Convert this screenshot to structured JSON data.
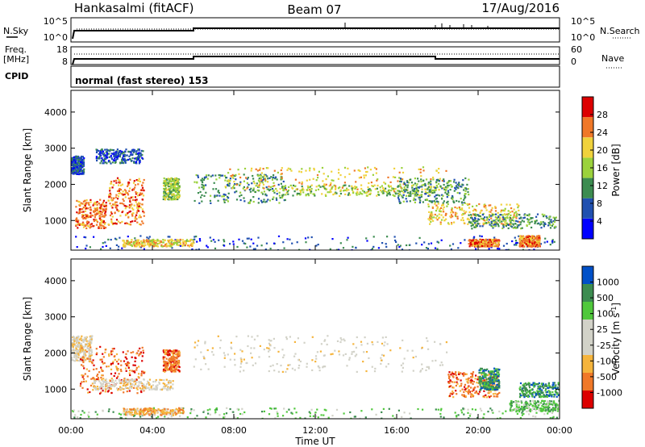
{
  "header": {
    "station": "Hankasalmi (fitACF)",
    "beam": "Beam 07",
    "date": "17/Aug/2016"
  },
  "nsky_panel": {
    "left_label": "N.Sky",
    "right_label": "N.Search",
    "left_ticks": [
      "10^5",
      "10^0"
    ],
    "right_ticks": [
      "10^5",
      "10^0"
    ]
  },
  "freq_panel": {
    "left_label_line1": "Freq.",
    "left_label_line2": "[MHz]",
    "right_label": "Nave",
    "left_ticks": [
      "18",
      "8"
    ],
    "right_ticks": [
      "60",
      "0"
    ]
  },
  "cpid_panel": {
    "label": "CPID",
    "text": "normal (fast stereo) 153"
  },
  "chart_data": [
    {
      "type": "heatmap",
      "name": "Power",
      "ylabel": "Slant Range [km]",
      "ylim": [
        180,
        4600
      ],
      "yticks": [
        1000,
        2000,
        3000,
        4000
      ],
      "xlim": [
        0,
        24
      ],
      "colorbar": {
        "label": "Power [dB]",
        "ticks": [
          "28",
          "24",
          "20",
          "16",
          "12",
          "8",
          "4"
        ],
        "colors": [
          "#0000ff",
          "#2050b0",
          "#3c8c50",
          "#9bd23c",
          "#f0d23c",
          "#f07828",
          "#dc0000"
        ]
      },
      "regions": [
        {
          "t0": 0.2,
          "t1": 1.7,
          "r0": 800,
          "r1": 1600,
          "level": 5
        },
        {
          "t0": 1.8,
          "t1": 3.6,
          "r0": 900,
          "r1": 2200,
          "level": 5
        },
        {
          "t0": 4.5,
          "t1": 5.3,
          "r0": 1600,
          "r1": 2200,
          "level": 3
        },
        {
          "t0": 6.0,
          "t1": 10.5,
          "r0": 1500,
          "r1": 2300,
          "level": 2
        },
        {
          "t0": 7.5,
          "t1": 18.5,
          "r0": 1800,
          "r1": 2500,
          "level": 4
        },
        {
          "t0": 10.0,
          "t1": 18.0,
          "r0": 1700,
          "r1": 2000,
          "level": 3
        },
        {
          "t0": 16.0,
          "t1": 19.5,
          "r0": 1500,
          "r1": 2200,
          "level": 2
        },
        {
          "t0": 17.5,
          "t1": 22.0,
          "r0": 900,
          "r1": 1500,
          "level": 4
        },
        {
          "t0": 19.5,
          "t1": 23.8,
          "r0": 800,
          "r1": 1200,
          "level": 2
        },
        {
          "t0": 0.0,
          "t1": 24.0,
          "r0": 200,
          "r1": 600,
          "level": 1
        },
        {
          "t0": 2.5,
          "t1": 6.0,
          "r0": 300,
          "r1": 500,
          "level": 4
        },
        {
          "t0": 19.5,
          "t1": 21.0,
          "r0": 300,
          "r1": 500,
          "level": 5
        },
        {
          "t0": 22.0,
          "t1": 23.0,
          "r0": 300,
          "r1": 600,
          "level": 5
        },
        {
          "t0": 0.0,
          "t1": 0.6,
          "r0": 2300,
          "r1": 2800,
          "level": 1
        },
        {
          "t0": 1.2,
          "t1": 3.5,
          "r0": 2600,
          "r1": 3000,
          "level": 1
        }
      ]
    },
    {
      "type": "heatmap",
      "name": "Velocity",
      "ylabel": "Slant Range [km]",
      "ylim": [
        180,
        4600
      ],
      "yticks": [
        1000,
        2000,
        3000,
        4000
      ],
      "xlim": [
        0,
        24
      ],
      "xticks": [
        "00:00",
        "04:00",
        "08:00",
        "12:00",
        "16:00",
        "20:00",
        "00:00"
      ],
      "xlabel": "Time UT",
      "colorbar": {
        "label": "Velocity [m s^-1]",
        "ticks": [
          "1000",
          "500",
          "100",
          "25",
          "-25",
          "-100",
          "-500",
          "-1000"
        ],
        "colors": [
          "#dc0000",
          "#f07828",
          "#f5b43c",
          "#d2d2c8",
          "#d2d2c8",
          "#50c83c",
          "#3c8c50",
          "#0050c8"
        ]
      },
      "regions": [
        {
          "t0": 6.0,
          "t1": 18.5,
          "r0": 1500,
          "r1": 2500,
          "level": 3
        },
        {
          "t0": 0.0,
          "t1": 1.0,
          "r0": 1800,
          "r1": 2500,
          "level": 3
        },
        {
          "t0": 0.4,
          "t1": 3.6,
          "r0": 900,
          "r1": 2200,
          "level": 1
        },
        {
          "t0": 4.5,
          "t1": 5.3,
          "r0": 1500,
          "r1": 2100,
          "level": 1
        },
        {
          "t0": 18.5,
          "t1": 21.0,
          "r0": 800,
          "r1": 1500,
          "level": 1
        },
        {
          "t0": 20.0,
          "t1": 21.0,
          "r0": 1000,
          "r1": 1600,
          "level": 6
        },
        {
          "t0": 0.0,
          "t1": 24.0,
          "r0": 200,
          "r1": 500,
          "level": 5
        },
        {
          "t0": 2.5,
          "t1": 5.5,
          "r0": 300,
          "r1": 500,
          "level": 2
        },
        {
          "t0": 21.5,
          "t1": 24.0,
          "r0": 400,
          "r1": 700,
          "level": 5
        },
        {
          "t0": 1.0,
          "t1": 5.0,
          "r0": 1000,
          "r1": 1300,
          "level": 3
        },
        {
          "t0": 22.0,
          "t1": 24.0,
          "r0": 800,
          "r1": 1200,
          "level": 6
        }
      ]
    }
  ]
}
